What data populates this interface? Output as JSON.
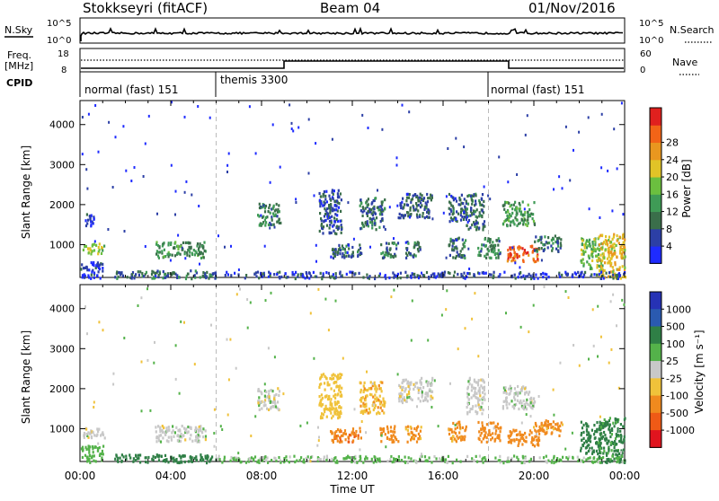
{
  "header": {
    "station": "Stokkseyri (fitACF)",
    "beam": "Beam 04",
    "date": "01/Nov/2016"
  },
  "top_panels": {
    "nsky_label": "N.Sky",
    "nsky_ticks": [
      "10^5",
      "10^0"
    ],
    "nsearch_label": "N.Search",
    "nsearch_ticks": [
      "10^5",
      "10^0"
    ],
    "freq_label": "Freq.",
    "freq_unit": "[MHz]",
    "freq_ticks": [
      "18",
      "8"
    ],
    "nave_label": "Nave",
    "nave_ticks": [
      "60",
      "0"
    ],
    "cpid_label": "CPID",
    "cpid_segments": [
      {
        "label": "normal (fast) 151",
        "start_h": 0
      },
      {
        "label": "themis 3300",
        "start_h": 6
      },
      {
        "label": "normal (fast) 151",
        "start_h": 18
      }
    ]
  },
  "chart_data": [
    {
      "type": "heatmap",
      "title": "",
      "xlabel": "Time UT",
      "ylabel": "Slant Range [km]",
      "xlim_hours": [
        0,
        24
      ],
      "ylim_km": [
        180,
        4600
      ],
      "x_ticks": [
        "00:00",
        "04:00",
        "08:00",
        "12:00",
        "16:00",
        "20:00",
        "00:00"
      ],
      "y_ticks": [
        1000,
        2000,
        3000,
        4000
      ],
      "colorbar": {
        "label": "Power [dB]",
        "ticks": [
          "4",
          "8",
          "12",
          "16",
          "20",
          "24",
          "28"
        ],
        "colors": [
          "#1e2bff",
          "#2c3fa6",
          "#3a6e4a",
          "#3f9b56",
          "#6bbf3f",
          "#e1c327",
          "#e9971f",
          "#f26417",
          "#e0201e"
        ]
      },
      "echo_regions": [
        {
          "t0": 0.0,
          "t1": 1.0,
          "r0": 180,
          "r1": 600,
          "v": 6
        },
        {
          "t0": 0.1,
          "t1": 1.1,
          "r0": 800,
          "r1": 1050,
          "v": 18
        },
        {
          "t0": 1.5,
          "t1": 6.0,
          "r0": 180,
          "r1": 380,
          "v": 10
        },
        {
          "t0": 3.3,
          "t1": 5.5,
          "r0": 700,
          "r1": 1100,
          "v": 13
        },
        {
          "t0": 0.2,
          "t1": 0.6,
          "r0": 1500,
          "r1": 1800,
          "v": 6
        },
        {
          "t0": 7.8,
          "t1": 8.8,
          "r0": 1500,
          "r1": 2050,
          "v": 12
        },
        {
          "t0": 10.5,
          "t1": 11.5,
          "r0": 1300,
          "r1": 2400,
          "v": 8
        },
        {
          "t0": 11.0,
          "t1": 12.4,
          "r0": 700,
          "r1": 1050,
          "v": 9
        },
        {
          "t0": 12.3,
          "t1": 13.4,
          "r0": 1400,
          "r1": 2200,
          "v": 10
        },
        {
          "t0": 13.2,
          "t1": 14.0,
          "r0": 700,
          "r1": 1100,
          "v": 11
        },
        {
          "t0": 14.0,
          "t1": 15.5,
          "r0": 1700,
          "r1": 2300,
          "v": 9
        },
        {
          "t0": 14.3,
          "t1": 15.0,
          "r0": 700,
          "r1": 1100,
          "v": 10
        },
        {
          "t0": 16.2,
          "t1": 17.0,
          "r0": 1600,
          "r1": 2300,
          "v": 9
        },
        {
          "t0": 16.2,
          "t1": 17.0,
          "r0": 700,
          "r1": 1200,
          "v": 10
        },
        {
          "t0": 17.0,
          "t1": 17.8,
          "r0": 1400,
          "r1": 2300,
          "v": 10
        },
        {
          "t0": 17.5,
          "t1": 18.5,
          "r0": 700,
          "r1": 1200,
          "v": 12
        },
        {
          "t0": 18.6,
          "t1": 20.0,
          "r0": 1500,
          "r1": 2100,
          "v": 14
        },
        {
          "t0": 18.8,
          "t1": 20.2,
          "r0": 600,
          "r1": 1000,
          "v": 28
        },
        {
          "t0": 20.0,
          "t1": 21.2,
          "r0": 850,
          "r1": 1250,
          "v": 10
        },
        {
          "t0": 22.0,
          "t1": 23.0,
          "r0": 400,
          "r1": 1200,
          "v": 17
        },
        {
          "t0": 22.8,
          "t1": 24.0,
          "r0": 180,
          "r1": 1300,
          "v": 22
        },
        {
          "t0": 6.0,
          "t1": 24.0,
          "r0": 180,
          "r1": 350,
          "v": 7
        }
      ]
    },
    {
      "type": "heatmap",
      "title": "",
      "xlabel": "Time UT",
      "ylabel": "Slant Range [km]",
      "xlim_hours": [
        0,
        24
      ],
      "ylim_km": [
        180,
        4600
      ],
      "x_ticks": [
        "00:00",
        "04:00",
        "08:00",
        "12:00",
        "16:00",
        "20:00",
        "00:00"
      ],
      "y_ticks": [
        1000,
        2000,
        3000,
        4000
      ],
      "colorbar": {
        "label": "Velocity [m s⁻¹]",
        "ticks": [
          "1000",
          "500",
          "100",
          "25",
          "-25",
          "-100",
          "-500",
          "-1000"
        ],
        "colors": [
          "#2632b5",
          "#2a5ab0",
          "#2f7f46",
          "#54b24a",
          "#c8c8c8",
          "#f0c23a",
          "#f08a1e",
          "#ef5a16",
          "#e0141e"
        ]
      },
      "echo_regions": [
        {
          "t0": 0.0,
          "t1": 1.0,
          "r0": 180,
          "r1": 600,
          "v": 60
        },
        {
          "t0": 0.1,
          "t1": 1.1,
          "r0": 800,
          "r1": 1050,
          "v": 0
        },
        {
          "t0": 1.5,
          "t1": 6.0,
          "r0": 180,
          "r1": 380,
          "v": 200
        },
        {
          "t0": 3.3,
          "t1": 5.5,
          "r0": 700,
          "r1": 1100,
          "v": 0
        },
        {
          "t0": 7.8,
          "t1": 8.8,
          "r0": 1500,
          "r1": 2050,
          "v": 0
        },
        {
          "t0": 10.5,
          "t1": 11.5,
          "r0": 1300,
          "r1": 2400,
          "v": -60
        },
        {
          "t0": 11.0,
          "t1": 12.4,
          "r0": 700,
          "r1": 1050,
          "v": -400
        },
        {
          "t0": 12.3,
          "t1": 13.4,
          "r0": 1400,
          "r1": 2200,
          "v": -80
        },
        {
          "t0": 13.2,
          "t1": 14.0,
          "r0": 700,
          "r1": 1100,
          "v": -300
        },
        {
          "t0": 14.0,
          "t1": 15.5,
          "r0": 1700,
          "r1": 2300,
          "v": 0
        },
        {
          "t0": 14.3,
          "t1": 15.0,
          "r0": 700,
          "r1": 1100,
          "v": -150
        },
        {
          "t0": 16.2,
          "t1": 17.0,
          "r0": 700,
          "r1": 1200,
          "v": -150
        },
        {
          "t0": 17.0,
          "t1": 17.8,
          "r0": 1400,
          "r1": 2300,
          "v": 0
        },
        {
          "t0": 17.5,
          "t1": 18.5,
          "r0": 700,
          "r1": 1200,
          "v": -200
        },
        {
          "t0": 18.6,
          "t1": 20.0,
          "r0": 1500,
          "r1": 2100,
          "v": 0
        },
        {
          "t0": 18.8,
          "t1": 20.2,
          "r0": 600,
          "r1": 1000,
          "v": -250
        },
        {
          "t0": 20.0,
          "t1": 21.2,
          "r0": 850,
          "r1": 1250,
          "v": -150
        },
        {
          "t0": 22.0,
          "t1": 23.0,
          "r0": 400,
          "r1": 1200,
          "v": 300
        },
        {
          "t0": 22.8,
          "t1": 24.0,
          "r0": 180,
          "r1": 1300,
          "v": 150
        },
        {
          "t0": 6.0,
          "t1": 24.0,
          "r0": 180,
          "r1": 350,
          "v": 40
        }
      ]
    }
  ]
}
